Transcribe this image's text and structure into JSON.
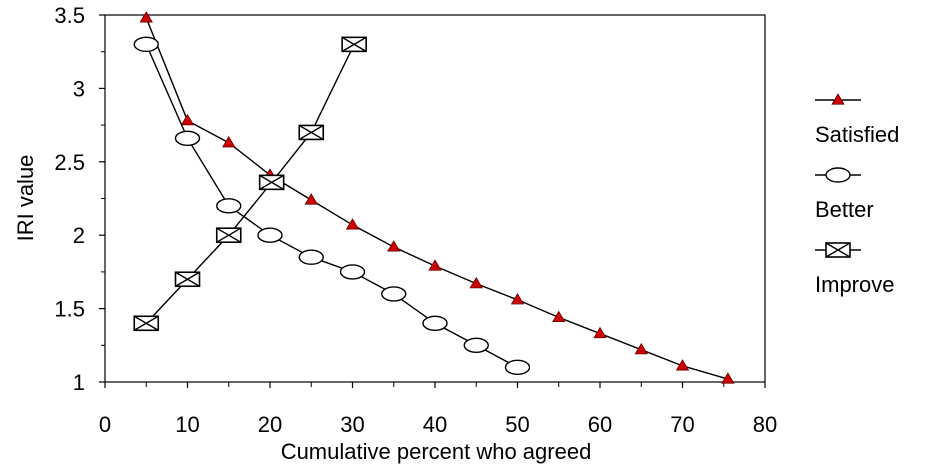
{
  "chart_data": {
    "type": "line",
    "title": "",
    "xlabel": "Cumulative percent who agreed",
    "ylabel": "IRI value",
    "xlim": [
      0,
      80
    ],
    "ylim": [
      1,
      3.5
    ],
    "x_ticks": [
      0,
      10,
      20,
      30,
      40,
      50,
      60,
      70,
      80
    ],
    "y_ticks": [
      1,
      1.5,
      2,
      2.5,
      3,
      3.5
    ],
    "x_tick_labels": [
      "0",
      "10",
      "20",
      "30",
      "40",
      "50",
      "60",
      "70",
      "80"
    ],
    "y_tick_labels": [
      "1",
      "1.5",
      "2",
      "2.5",
      "3",
      "3.5"
    ],
    "grid": false,
    "legend_position": "right",
    "series": [
      {
        "name": "Satisfied",
        "marker": "triangle",
        "marker_color": "#cc0000",
        "line_color": "#000000",
        "x": [
          5,
          10,
          15,
          20,
          25,
          30,
          35,
          40,
          45,
          50,
          55,
          60,
          65,
          70,
          75.5
        ],
        "y": [
          3.48,
          2.78,
          2.63,
          2.41,
          2.24,
          2.07,
          1.92,
          1.79,
          1.67,
          1.56,
          1.44,
          1.33,
          1.22,
          1.11,
          1.02
        ]
      },
      {
        "name": "Better",
        "marker": "ellipse",
        "marker_color": "#ffffff",
        "line_color": "#000000",
        "x": [
          5,
          10,
          15,
          20,
          25,
          30,
          35,
          40,
          45,
          50
        ],
        "y": [
          3.3,
          2.66,
          2.2,
          2.0,
          1.85,
          1.75,
          1.6,
          1.4,
          1.25,
          1.1
        ]
      },
      {
        "name": "Improve",
        "marker": "boxed-x",
        "marker_color": "#ffffff",
        "line_color": "#000000",
        "x": [
          5,
          10,
          15,
          20.2,
          25,
          30.2
        ],
        "y": [
          1.4,
          1.7,
          2.0,
          2.36,
          2.7,
          3.3
        ]
      }
    ]
  }
}
